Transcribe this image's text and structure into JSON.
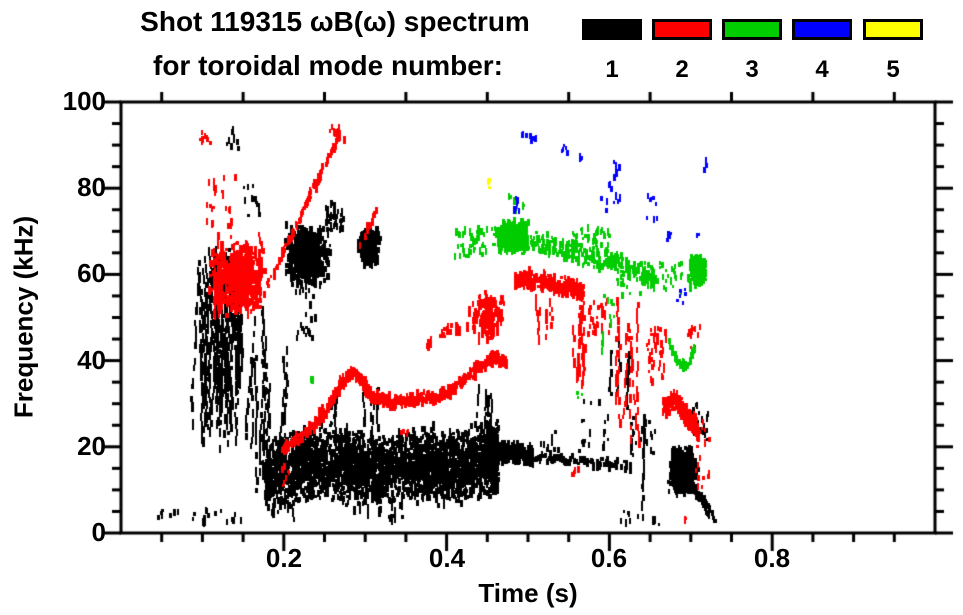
{
  "header": {
    "title_line1": "Shot 119315 ωB(ω) spectrum",
    "title_line2": "for toroidal mode number:"
  },
  "legend": {
    "items": [
      {
        "label": "1",
        "color": "#000000"
      },
      {
        "label": "2",
        "color": "#ff0000"
      },
      {
        "label": "3",
        "color": "#00cc00"
      },
      {
        "label": "4",
        "color": "#0000ff"
      },
      {
        "label": "5",
        "color": "#ffff00"
      }
    ]
  },
  "axes": {
    "x": {
      "title": "Time (s)",
      "range": [
        0,
        1.0
      ],
      "major_ticks": [
        0.2,
        0.4,
        0.6,
        0.8
      ],
      "tick_labels": [
        "0.2",
        "0.4",
        "0.6",
        "0.8"
      ],
      "minor_step": 0.05
    },
    "y": {
      "title": "Frequency (kHz)",
      "range": [
        0,
        100
      ],
      "major_ticks": [
        0,
        20,
        40,
        60,
        80,
        100
      ],
      "tick_labels": [
        "0",
        "20",
        "40",
        "60",
        "80",
        "100"
      ],
      "minor_step": 5
    }
  },
  "chart_data": {
    "type": "scatter",
    "title": "Shot 119315 ωB(ω) spectrum for toroidal mode number",
    "xlabel": "Time (s)",
    "ylabel": "Frequency (kHz)",
    "xlim": [
      0,
      1.0
    ],
    "ylim": [
      0,
      100
    ],
    "grid": false,
    "legend_position": "top-right",
    "mode_colors": {
      "1": "#000000",
      "2": "#ff0000",
      "3": "#00cc00",
      "4": "#0000ff",
      "5": "#ffff00"
    },
    "features": [
      {
        "mode": 1,
        "kind": "vstreaks",
        "t": [
          0.092,
          0.148
        ],
        "f": [
          20,
          67
        ],
        "lines": 34
      },
      {
        "mode": 1,
        "kind": "specks",
        "t": [
          0.128,
          0.142
        ],
        "f": [
          89,
          94
        ],
        "n": 10
      },
      {
        "mode": 1,
        "kind": "specks",
        "t": [
          0.15,
          0.17
        ],
        "f": [
          73,
          82
        ],
        "n": 12
      },
      {
        "mode": 1,
        "kind": "vstreaks",
        "t": [
          0.154,
          0.18
        ],
        "f": [
          4,
          58
        ],
        "lines": 6
      },
      {
        "mode": 1,
        "kind": "vstreaks",
        "t": [
          0.178,
          0.206
        ],
        "f": [
          8,
          44
        ],
        "lines": 4
      },
      {
        "mode": 1,
        "kind": "blob",
        "t": [
          0.198,
          0.258
        ],
        "f": [
          57,
          72
        ],
        "n": 400
      },
      {
        "mode": 1,
        "kind": "specks",
        "t": [
          0.25,
          0.272
        ],
        "f": [
          70,
          77
        ],
        "n": 40
      },
      {
        "mode": 1,
        "kind": "blob",
        "t": [
          0.288,
          0.318
        ],
        "f": [
          62,
          71
        ],
        "n": 170
      },
      {
        "mode": 1,
        "kind": "specks",
        "t": [
          0.214,
          0.238
        ],
        "f": [
          45,
          58
        ],
        "n": 25
      },
      {
        "mode": 1,
        "kind": "band",
        "path": [
          [
            0.175,
            13
          ],
          [
            0.2,
            14
          ],
          [
            0.225,
            16
          ],
          [
            0.25,
            17
          ],
          [
            0.275,
            16
          ],
          [
            0.3,
            15
          ],
          [
            0.325,
            14.5
          ],
          [
            0.35,
            15.5
          ],
          [
            0.375,
            16
          ],
          [
            0.4,
            15
          ],
          [
            0.425,
            16
          ],
          [
            0.45,
            17
          ],
          [
            0.462,
            17
          ]
        ],
        "hw": 9.5,
        "n": 3000
      },
      {
        "mode": 1,
        "kind": "vstreaks",
        "t": [
          0.24,
          0.32
        ],
        "f": [
          24,
          34
        ],
        "lines": 8
      },
      {
        "mode": 1,
        "kind": "vstreaks",
        "t": [
          0.43,
          0.458
        ],
        "f": [
          24,
          35
        ],
        "lines": 5
      },
      {
        "mode": 1,
        "kind": "vstreaks",
        "t": [
          0.2,
          0.36
        ],
        "f": [
          2,
          8
        ],
        "lines": 6
      },
      {
        "mode": 1,
        "kind": "band",
        "path": [
          [
            0.462,
            18.5
          ],
          [
            0.483,
            19
          ],
          [
            0.505,
            18
          ]
        ],
        "hw": 2.8,
        "n": 200
      },
      {
        "mode": 1,
        "kind": "band",
        "path": [
          [
            0.505,
            17.5
          ],
          [
            0.56,
            16.8
          ],
          [
            0.625,
            15.8
          ]
        ],
        "hw": 1.2,
        "n": 90
      },
      {
        "mode": 1,
        "kind": "specks",
        "t": [
          0.51,
          0.6
        ],
        "f": [
          19,
          25
        ],
        "n": 20
      },
      {
        "mode": 1,
        "kind": "specks",
        "t": [
          0.565,
          0.6
        ],
        "f": [
          23,
          31
        ],
        "n": 8
      },
      {
        "mode": 1,
        "kind": "vstreaks",
        "t": [
          0.585,
          0.625
        ],
        "f": [
          28,
          45
        ],
        "lines": 3
      },
      {
        "mode": 1,
        "kind": "vstreaks",
        "t": [
          0.632,
          0.642
        ],
        "f": [
          3,
          28
        ],
        "lines": 2
      },
      {
        "mode": 1,
        "kind": "specks",
        "t": [
          0.625,
          0.658
        ],
        "f": [
          18,
          27
        ],
        "n": 28
      },
      {
        "mode": 1,
        "kind": "blob",
        "t": [
          0.67,
          0.708
        ],
        "f": [
          9,
          20
        ],
        "n": 380
      },
      {
        "mode": 1,
        "kind": "specks",
        "t": [
          0.698,
          0.72
        ],
        "f": [
          21,
          30
        ],
        "n": 26
      },
      {
        "mode": 1,
        "kind": "band",
        "path": [
          [
            0.7,
            11
          ],
          [
            0.73,
            3
          ]
        ],
        "hw": 1.5,
        "n": 50
      },
      {
        "mode": 1,
        "kind": "specks",
        "t": [
          0.034,
          0.148
        ],
        "f": [
          1.5,
          5.5
        ],
        "n": 26
      },
      {
        "mode": 1,
        "kind": "specks",
        "t": [
          0.325,
          0.333
        ],
        "f": [
          2,
          4
        ],
        "n": 6
      },
      {
        "mode": 1,
        "kind": "specks",
        "t": [
          0.612,
          0.662
        ],
        "f": [
          2,
          5
        ],
        "n": 12
      },
      {
        "mode": 2,
        "kind": "blob",
        "t": [
          0.104,
          0.178
        ],
        "f": [
          50,
          68
        ],
        "n": 420
      },
      {
        "mode": 2,
        "kind": "vstreaks",
        "t": [
          0.108,
          0.175
        ],
        "f": [
          50,
          70
        ],
        "lines": 10
      },
      {
        "mode": 2,
        "kind": "specks",
        "t": [
          0.104,
          0.14
        ],
        "f": [
          68,
          83
        ],
        "n": 28
      },
      {
        "mode": 2,
        "kind": "specks",
        "t": [
          0.096,
          0.108
        ],
        "f": [
          90,
          94.5
        ],
        "n": 8
      },
      {
        "mode": 2,
        "kind": "band",
        "path": [
          [
            0.178,
            57
          ],
          [
            0.268,
            93
          ]
        ],
        "hw": 1.3,
        "n": 120
      },
      {
        "mode": 2,
        "kind": "specks",
        "t": [
          0.252,
          0.275
        ],
        "f": [
          91,
          94.5
        ],
        "n": 10
      },
      {
        "mode": 2,
        "kind": "band",
        "path": [
          [
            0.292,
            66
          ],
          [
            0.315,
            76
          ]
        ],
        "hw": 1.0,
        "n": 16
      },
      {
        "mode": 2,
        "kind": "band",
        "path": [
          [
            0.196,
            19.5
          ],
          [
            0.225,
            23
          ],
          [
            0.25,
            28
          ],
          [
            0.268,
            34.5
          ],
          [
            0.285,
            37.5
          ],
          [
            0.297,
            34.5
          ],
          [
            0.308,
            31.2
          ],
          [
            0.33,
            30.5
          ],
          [
            0.36,
            31
          ],
          [
            0.385,
            31.5
          ],
          [
            0.41,
            34
          ],
          [
            0.435,
            38
          ],
          [
            0.455,
            40.5
          ],
          [
            0.472,
            39.8
          ]
        ],
        "hw": 1.6,
        "n": 700
      },
      {
        "mode": 2,
        "kind": "specks",
        "t": [
          0.196,
          0.206
        ],
        "f": [
          11,
          17
        ],
        "n": 8
      },
      {
        "mode": 2,
        "kind": "specks",
        "t": [
          0.342,
          0.352
        ],
        "f": [
          22,
          25
        ],
        "n": 5
      },
      {
        "mode": 2,
        "kind": "band",
        "path": [
          [
            0.372,
            44
          ],
          [
            0.425,
            49
          ]
        ],
        "hw": 1.8,
        "n": 22
      },
      {
        "mode": 2,
        "kind": "blob",
        "t": [
          0.425,
          0.472
        ],
        "f": [
          45,
          56
        ],
        "n": 130
      },
      {
        "mode": 2,
        "kind": "band",
        "path": [
          [
            0.482,
            59
          ],
          [
            0.51,
            58.5
          ],
          [
            0.535,
            57.5
          ],
          [
            0.558,
            56.5
          ],
          [
            0.566,
            55.5
          ]
        ],
        "hw": 2.2,
        "n": 330
      },
      {
        "mode": 2,
        "kind": "vstreaks",
        "t": [
          0.505,
          0.528
        ],
        "f": [
          43,
          56
        ],
        "lines": 4
      },
      {
        "mode": 2,
        "kind": "vstreaks",
        "t": [
          0.548,
          0.568
        ],
        "f": [
          34,
          55
        ],
        "lines": 5
      },
      {
        "mode": 2,
        "kind": "specks",
        "t": [
          0.568,
          0.602
        ],
        "f": [
          46,
          54
        ],
        "n": 32
      },
      {
        "mode": 2,
        "kind": "specks",
        "t": [
          0.553,
          0.562
        ],
        "f": [
          12,
          16
        ],
        "n": 4
      },
      {
        "mode": 2,
        "kind": "vstreaks",
        "t": [
          0.604,
          0.64
        ],
        "f": [
          20,
          56
        ],
        "lines": 6
      },
      {
        "mode": 2,
        "kind": "specks",
        "t": [
          0.645,
          0.668
        ],
        "f": [
          35,
          48
        ],
        "n": 38
      },
      {
        "mode": 2,
        "kind": "band",
        "path": [
          [
            0.665,
            29
          ],
          [
            0.678,
            31
          ],
          [
            0.69,
            28
          ],
          [
            0.7,
            25.5
          ],
          [
            0.708,
            24
          ]
        ],
        "hw": 2.5,
        "n": 260
      },
      {
        "mode": 2,
        "kind": "specks",
        "t": [
          0.695,
          0.714
        ],
        "f": [
          43,
          49
        ],
        "n": 12
      },
      {
        "mode": 2,
        "kind": "specks",
        "t": [
          0.703,
          0.722
        ],
        "f": [
          9,
          26
        ],
        "n": 18
      },
      {
        "mode": 2,
        "kind": "specks",
        "t": [
          0.688,
          0.693
        ],
        "f": [
          2.5,
          4
        ],
        "n": 2
      },
      {
        "mode": 3,
        "kind": "specks",
        "t": [
          0.408,
          0.455
        ],
        "f": [
          64,
          71
        ],
        "n": 45
      },
      {
        "mode": 3,
        "kind": "blob",
        "t": [
          0.455,
          0.502
        ],
        "f": [
          64.5,
          72.5
        ],
        "n": 300
      },
      {
        "mode": 3,
        "kind": "band",
        "path": [
          [
            0.502,
            67.5
          ],
          [
            0.535,
            66
          ],
          [
            0.565,
            64.5
          ],
          [
            0.6,
            63
          ],
          [
            0.635,
            60.5
          ],
          [
            0.655,
            59
          ]
        ],
        "hw": 2.8,
        "n": 270
      },
      {
        "mode": 3,
        "kind": "specks",
        "t": [
          0.55,
          0.6
        ],
        "f": [
          66,
          71
        ],
        "n": 35
      },
      {
        "mode": 3,
        "kind": "specks",
        "t": [
          0.474,
          0.495
        ],
        "f": [
          74,
          78
        ],
        "n": 8
      },
      {
        "mode": 3,
        "kind": "blob",
        "t": [
          0.695,
          0.718
        ],
        "f": [
          57,
          65
        ],
        "n": 150
      },
      {
        "mode": 3,
        "kind": "specks",
        "t": [
          0.655,
          0.692
        ],
        "f": [
          55,
          63
        ],
        "n": 22
      },
      {
        "mode": 3,
        "kind": "vstreaks",
        "t": [
          0.583,
          0.592
        ],
        "f": [
          40,
          49
        ],
        "lines": 2
      },
      {
        "mode": 3,
        "kind": "specks",
        "t": [
          0.588,
          0.606
        ],
        "f": [
          48,
          55
        ],
        "n": 10
      },
      {
        "mode": 3,
        "kind": "specks",
        "t": [
          0.605,
          0.64
        ],
        "f": [
          55,
          61
        ],
        "n": 14
      },
      {
        "mode": 3,
        "kind": "band",
        "path": [
          [
            0.672,
            44
          ],
          [
            0.68,
            40.5
          ],
          [
            0.688,
            38.5
          ],
          [
            0.697,
            39.5
          ],
          [
            0.703,
            43
          ]
        ],
        "hw": 1.2,
        "n": 60
      },
      {
        "mode": 3,
        "kind": "specks",
        "t": [
          0.23,
          0.236
        ],
        "f": [
          34,
          36
        ],
        "n": 2
      },
      {
        "mode": 3,
        "kind": "specks",
        "t": [
          0.557,
          0.565
        ],
        "f": [
          31,
          33
        ],
        "n": 3
      },
      {
        "mode": 4,
        "kind": "specks",
        "t": [
          0.481,
          0.488
        ],
        "f": [
          74,
          78
        ],
        "n": 6
      },
      {
        "mode": 4,
        "kind": "band",
        "path": [
          [
            0.488,
            92.5
          ],
          [
            0.51,
            91
          ]
        ],
        "hw": 0.8,
        "n": 9
      },
      {
        "mode": 4,
        "kind": "specks",
        "t": [
          0.54,
          0.547
        ],
        "f": [
          88,
          90.5
        ],
        "n": 5
      },
      {
        "mode": 4,
        "kind": "specks",
        "t": [
          0.562,
          0.568
        ],
        "f": [
          86.5,
          88.5
        ],
        "n": 4
      },
      {
        "mode": 4,
        "kind": "specks",
        "t": [
          0.597,
          0.603
        ],
        "f": [
          79.5,
          81.5
        ],
        "n": 3
      },
      {
        "mode": 4,
        "kind": "specks",
        "t": [
          0.604,
          0.615
        ],
        "f": [
          82,
          86
        ],
        "n": 6
      },
      {
        "mode": 4,
        "kind": "specks",
        "t": [
          0.588,
          0.615
        ],
        "f": [
          74,
          79
        ],
        "n": 8
      },
      {
        "mode": 4,
        "kind": "specks",
        "t": [
          0.638,
          0.657
        ],
        "f": [
          72.5,
          78.5
        ],
        "n": 8
      },
      {
        "mode": 4,
        "kind": "specks",
        "t": [
          0.666,
          0.674
        ],
        "f": [
          68,
          71
        ],
        "n": 5
      },
      {
        "mode": 4,
        "kind": "specks",
        "t": [
          0.682,
          0.692
        ],
        "f": [
          52,
          57.5
        ],
        "n": 6
      },
      {
        "mode": 4,
        "kind": "specks",
        "t": [
          0.705,
          0.71
        ],
        "f": [
          68.5,
          70.5
        ],
        "n": 3
      },
      {
        "mode": 4,
        "kind": "specks",
        "t": [
          0.712,
          0.718
        ],
        "f": [
          83.5,
          86.5
        ],
        "n": 4
      },
      {
        "mode": 5,
        "kind": "specks",
        "t": [
          0.448,
          0.453
        ],
        "f": [
          80,
          82
        ],
        "n": 3
      }
    ]
  }
}
